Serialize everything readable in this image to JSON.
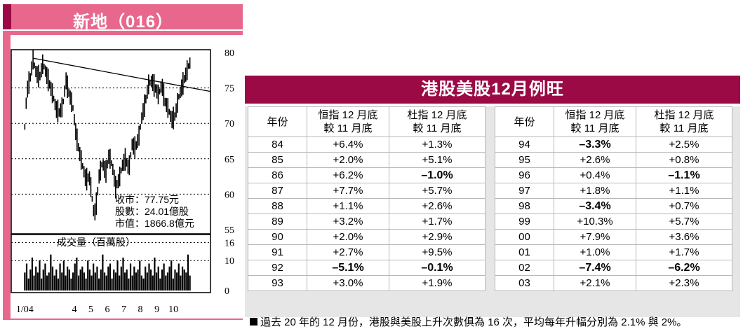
{
  "chart_section": {
    "title": "新地（016）",
    "info_lines": [
      "收市：77.75元",
      "股數：24.01億股",
      "市值：1866.8億元"
    ],
    "volume_label": "成交量（百萬股）"
  },
  "chart_data": [
    {
      "type": "line",
      "title": "新地（016）",
      "y_ticks": [
        "80",
        "75",
        "70",
        "65",
        "60",
        "55"
      ],
      "ylim": [
        55,
        80
      ],
      "x_ticks": [
        "1/04",
        "4",
        "5",
        "6",
        "7",
        "8",
        "9",
        "10"
      ],
      "x_tick_month_index": [
        1,
        4,
        5,
        6,
        7,
        8,
        9,
        10
      ],
      "xlim_month_index": [
        0.9,
        11.1
      ],
      "series": [
        {
          "x": [
            1.0,
            1.1,
            1.2,
            1.3,
            1.5,
            1.7,
            1.9,
            2.1,
            2.3,
            2.5,
            2.7,
            2.9,
            3.1,
            3.3,
            3.5,
            3.7,
            3.9,
            4.1,
            4.3,
            4.5,
            4.7,
            4.9,
            5.0,
            5.1,
            5.2,
            5.3,
            5.4,
            5.5,
            5.7,
            5.9,
            6.1,
            6.3,
            6.5,
            6.7,
            6.9,
            7.1,
            7.3,
            7.5,
            7.7,
            7.9,
            8.1,
            8.3,
            8.5,
            8.7,
            8.9,
            9.1,
            9.3,
            9.5,
            9.7,
            9.9,
            10.1,
            10.3,
            10.5,
            10.7,
            10.9,
            11.0
          ],
          "y": [
            69.5,
            73.5,
            75.5,
            76.0,
            79.0,
            77.0,
            76.5,
            78.5,
            77.0,
            75.5,
            74.0,
            72.0,
            71.5,
            72.5,
            76.0,
            74.0,
            72.5,
            68.5,
            66.0,
            64.0,
            62.0,
            62.5,
            61.0,
            59.0,
            57.0,
            58.0,
            60.0,
            62.5,
            64.5,
            63.0,
            65.5,
            64.0,
            61.0,
            62.0,
            64.0,
            65.0,
            63.5,
            67.0,
            66.5,
            68.0,
            71.0,
            73.0,
            75.5,
            76.0,
            75.0,
            74.0,
            75.5,
            73.0,
            72.0,
            70.5,
            71.0,
            73.5,
            75.0,
            76.5,
            78.0,
            78.5
          ]
        }
      ],
      "annotations": [
        "收市：77.75元",
        "股數：24.01億股",
        "市值：1866.8億元"
      ]
    },
    {
      "type": "bar",
      "title": "成交量（百萬股）",
      "y_ticks": [
        "16",
        "10",
        "0"
      ],
      "ylim": [
        0,
        18
      ],
      "x_range_month_index": [
        1.0,
        11.0
      ],
      "values": [
        6,
        9,
        4,
        7,
        11,
        5,
        8,
        6,
        10,
        4,
        7,
        9,
        5,
        6,
        12,
        8,
        5,
        7,
        4,
        9,
        6,
        10,
        5,
        8,
        7,
        4,
        6,
        9,
        11,
        5,
        7,
        8,
        6,
        4,
        10,
        7,
        5,
        9,
        6,
        8,
        4,
        7,
        12,
        6,
        5,
        8,
        9,
        4,
        7,
        6,
        10,
        5,
        8,
        11,
        6,
        7,
        4,
        9,
        5,
        8,
        6,
        7,
        10,
        5,
        4,
        8,
        6,
        9,
        7,
        5,
        11,
        6,
        8,
        4,
        7,
        9,
        5,
        6,
        8,
        10,
        4,
        7,
        6,
        9,
        5,
        8,
        7,
        6,
        12,
        5
      ]
    }
  ],
  "table_section": {
    "title": "港股美股12月例旺",
    "headers_left": {
      "year": "年份",
      "hsi_line1": "恒指 12 月底",
      "hsi_line2": "較 11 月底",
      "dji_line1": "杜指 12 月底",
      "dji_line2": "較 11 月底"
    },
    "headers_right": {
      "year": "年份",
      "hsi_line1": "恒指 12 月底",
      "hsi_line2": "較 11 月底",
      "dji_line1": "杜指 12 月底",
      "dji_line2": "較 11 月底"
    },
    "rows_left": [
      {
        "year": "84",
        "hsi": "+6.4%",
        "dji": "+1.3%",
        "hsi_bold": false,
        "dji_bold": false
      },
      {
        "year": "85",
        "hsi": "+2.0%",
        "dji": "+5.1%",
        "hsi_bold": false,
        "dji_bold": false
      },
      {
        "year": "86",
        "hsi": "+6.2%",
        "dji": "–1.0%",
        "hsi_bold": false,
        "dji_bold": true
      },
      {
        "year": "87",
        "hsi": "+7.7%",
        "dji": "+5.7%",
        "hsi_bold": false,
        "dji_bold": false
      },
      {
        "year": "88",
        "hsi": "+1.1%",
        "dji": "+2.6%",
        "hsi_bold": false,
        "dji_bold": false
      },
      {
        "year": "89",
        "hsi": "+3.2%",
        "dji": "+1.7%",
        "hsi_bold": false,
        "dji_bold": false
      },
      {
        "year": "90",
        "hsi": "+2.0%",
        "dji": "+2.9%",
        "hsi_bold": false,
        "dji_bold": false
      },
      {
        "year": "91",
        "hsi": "+2.7%",
        "dji": "+9.5%",
        "hsi_bold": false,
        "dji_bold": false
      },
      {
        "year": "92",
        "hsi": "–5.1%",
        "dji": "–0.1%",
        "hsi_bold": true,
        "dji_bold": true
      },
      {
        "year": "93",
        "hsi": "+3.0%",
        "dji": "+1.9%",
        "hsi_bold": false,
        "dji_bold": false
      }
    ],
    "rows_right": [
      {
        "year": "94",
        "hsi": "–3.3%",
        "dji": "+2.5%",
        "hsi_bold": true,
        "dji_bold": false
      },
      {
        "year": "95",
        "hsi": "+2.6%",
        "dji": "+0.8%",
        "hsi_bold": false,
        "dji_bold": false
      },
      {
        "year": "96",
        "hsi": "+0.4%",
        "dji": "–1.1%",
        "hsi_bold": false,
        "dji_bold": true
      },
      {
        "year": "97",
        "hsi": "+1.8%",
        "dji": "+1.1%",
        "hsi_bold": false,
        "dji_bold": false
      },
      {
        "year": "98",
        "hsi": "–3.4%",
        "dji": "+0.7%",
        "hsi_bold": true,
        "dji_bold": false
      },
      {
        "year": "99",
        "hsi": "+10.3%",
        "dji": "+5.7%",
        "hsi_bold": false,
        "dji_bold": false
      },
      {
        "year": "00",
        "hsi": "+7.9%",
        "dji": "+3.6%",
        "hsi_bold": false,
        "dji_bold": false
      },
      {
        "year": "01",
        "hsi": "+1.0%",
        "dji": "+1.7%",
        "hsi_bold": false,
        "dji_bold": false
      },
      {
        "year": "02",
        "hsi": "–7.4%",
        "dji": "–6.2%",
        "hsi_bold": true,
        "dji_bold": true
      },
      {
        "year": "03",
        "hsi": "+2.1%",
        "dji": "+2.3%",
        "hsi_bold": false,
        "dji_bold": false
      }
    ],
    "footnote": "過去 20 年的 12 月份，港股與美股上升次數俱為 16 次，平均每年升幅分別為 2.1% 與 2%。"
  }
}
